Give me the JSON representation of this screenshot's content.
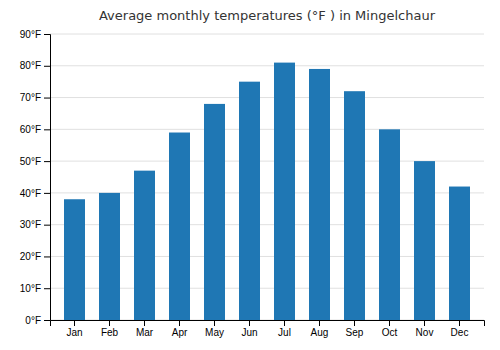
{
  "chart_data": {
    "type": "bar",
    "title": "Average monthly temperatures (°F ) in Mingelchaur",
    "categories": [
      "Jan",
      "Feb",
      "Mar",
      "Apr",
      "May",
      "Jun",
      "Jul",
      "Aug",
      "Sep",
      "Oct",
      "Nov",
      "Dec"
    ],
    "values": [
      38,
      40,
      47,
      59,
      68,
      75,
      81,
      79,
      72,
      60,
      50,
      42
    ],
    "ylim": [
      0,
      90
    ],
    "yticks": [
      {
        "value": 0,
        "label": "0°F"
      },
      {
        "value": 10,
        "label": "10°F"
      },
      {
        "value": 20,
        "label": "20°F"
      },
      {
        "value": 30,
        "label": "30°F"
      },
      {
        "value": 40,
        "label": "40°F"
      },
      {
        "value": 50,
        "label": "50°F"
      },
      {
        "value": 60,
        "label": "60°F"
      },
      {
        "value": 70,
        "label": "70°F"
      },
      {
        "value": 80,
        "label": "80°F"
      },
      {
        "value": 90,
        "label": "90°F"
      }
    ],
    "grid": true
  }
}
